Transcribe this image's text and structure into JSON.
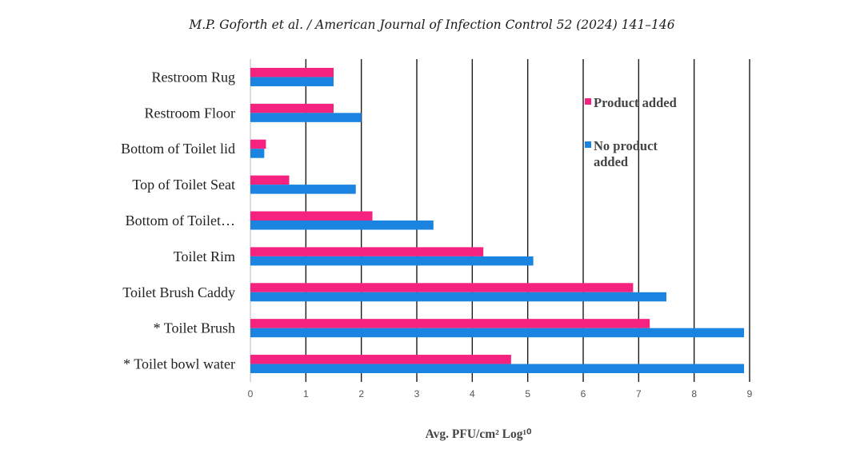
{
  "header": {
    "citation": "M.P. Goforth et al. / American Journal of Infection Control 52 (2024) 141–146"
  },
  "chart_data": {
    "type": "bar",
    "orientation": "horizontal",
    "categories": [
      "Restroom Rug",
      "Restroom Floor",
      "Bottom of Toilet lid",
      "Top of Toilet Seat",
      "Bottom of Toilet…",
      "Toilet Rim",
      "Toilet Brush Caddy",
      "* Toilet Brush",
      "* Toilet bowl water"
    ],
    "series": [
      {
        "name": "Product added",
        "color": "#f5237f",
        "values": [
          1.5,
          1.5,
          0.28,
          0.7,
          2.2,
          4.2,
          6.9,
          7.2,
          4.7
        ]
      },
      {
        "name": "No product added",
        "color": "#1a84e0",
        "values": [
          1.5,
          2.0,
          0.25,
          1.9,
          3.3,
          5.1,
          7.5,
          8.9,
          8.9
        ]
      }
    ],
    "xlabel": "Avg. PFU/cm² Log¹⁰",
    "xlim": [
      0,
      9
    ],
    "xticks": [
      "0",
      "1",
      "2",
      "3",
      "4",
      "5",
      "6",
      "7",
      "8",
      "9"
    ],
    "grid": "vertical",
    "legend": {
      "placement": "top-right",
      "entries": [
        {
          "lines": [
            "Product added"
          ]
        },
        {
          "lines": [
            "No product",
            "added"
          ]
        }
      ]
    }
  }
}
